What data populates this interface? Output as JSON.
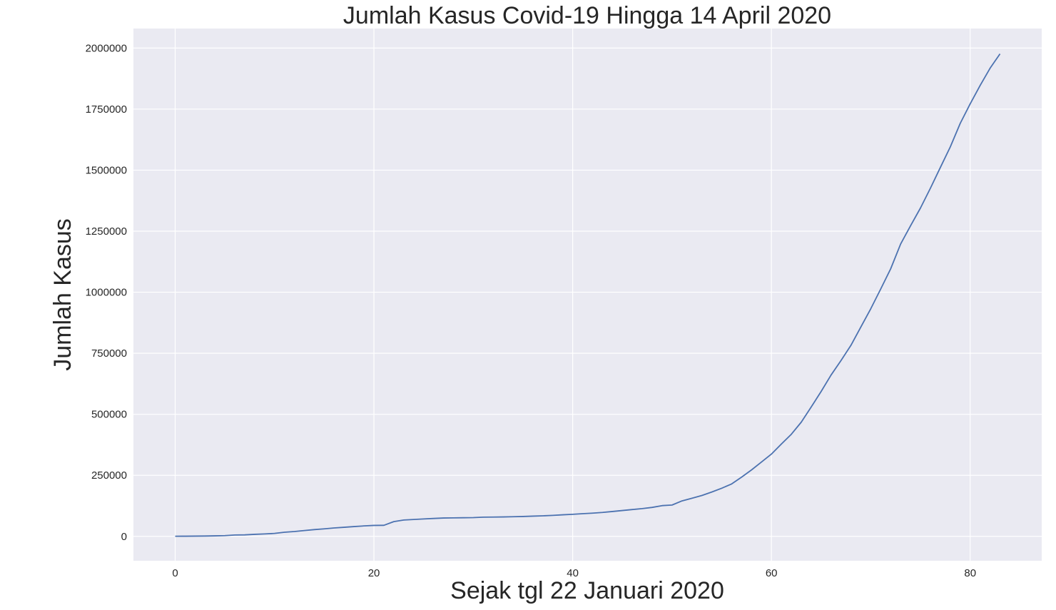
{
  "chart_data": {
    "type": "line",
    "title": "Jumlah Kasus Covid-19 Hingga 14 April 2020",
    "xlabel": "Sejak tgl 22 Januari 2020",
    "ylabel": "Jumlah Kasus",
    "xlim": [
      -4.2,
      87.2
    ],
    "ylim": [
      -100000,
      2080000
    ],
    "xticks": [
      0,
      20,
      40,
      60,
      80
    ],
    "xtick_labels": [
      "0",
      "20",
      "40",
      "60",
      "80"
    ],
    "yticks": [
      0,
      250000,
      500000,
      750000,
      1000000,
      1250000,
      1500000,
      1750000,
      2000000
    ],
    "ytick_labels": [
      "0",
      "250000",
      "500000",
      "750000",
      "1000000",
      "1250000",
      "1500000",
      "1750000",
      "2000000"
    ],
    "grid": true,
    "colors": {
      "background": "#eaeaf2",
      "grid": "#ffffff",
      "line": "#4c72b0",
      "text": "#262626"
    },
    "series": [
      {
        "x": [
          0,
          1,
          2,
          3,
          4,
          5,
          6,
          7,
          8,
          9,
          10,
          11,
          12,
          13,
          14,
          15,
          16,
          17,
          18,
          19,
          20,
          21,
          22,
          23,
          24,
          25,
          26,
          27,
          28,
          29,
          30,
          31,
          32,
          33,
          34,
          35,
          36,
          37,
          38,
          39,
          40,
          41,
          42,
          43,
          44,
          45,
          46,
          47,
          48,
          49,
          50,
          51,
          52,
          53,
          54,
          55,
          56,
          57,
          58,
          59,
          60,
          61,
          62,
          63,
          64,
          65,
          66,
          67,
          68,
          69,
          70,
          71,
          72,
          73,
          74,
          75,
          76,
          77,
          78,
          79,
          80,
          81,
          82,
          83
        ],
        "values": [
          555,
          654,
          941,
          1434,
          2118,
          2927,
          5578,
          6166,
          8234,
          9927,
          12038,
          16787,
          19881,
          23892,
          27635,
          30794,
          34391,
          37120,
          40150,
          42762,
          44802,
          45221,
          60368,
          66885,
          69030,
          71224,
          73258,
          75136,
          75639,
          76197,
          76819,
          78572,
          78958,
          79561,
          80406,
          81388,
          82746,
          84112,
          86011,
          88369,
          90306,
          92840,
          95120,
          97886,
          101801,
          105847,
          109821,
          113590,
          118620,
          125875,
          128352,
          145205,
          156101,
          167454,
          181574,
          197102,
          214821,
          242570,
          272208,
          304507,
          336953,
          378235,
          418045,
          467653,
          529591,
          593291,
          660706,
          720117,
          782365,
          857487,
          932605,
          1013466,
          1095917,
          1197405,
          1272115,
          1345048,
          1426096,
          1511104,
          1595350,
          1691719,
          1771514,
          1846680,
          1917320,
          1976191
        ]
      }
    ]
  }
}
